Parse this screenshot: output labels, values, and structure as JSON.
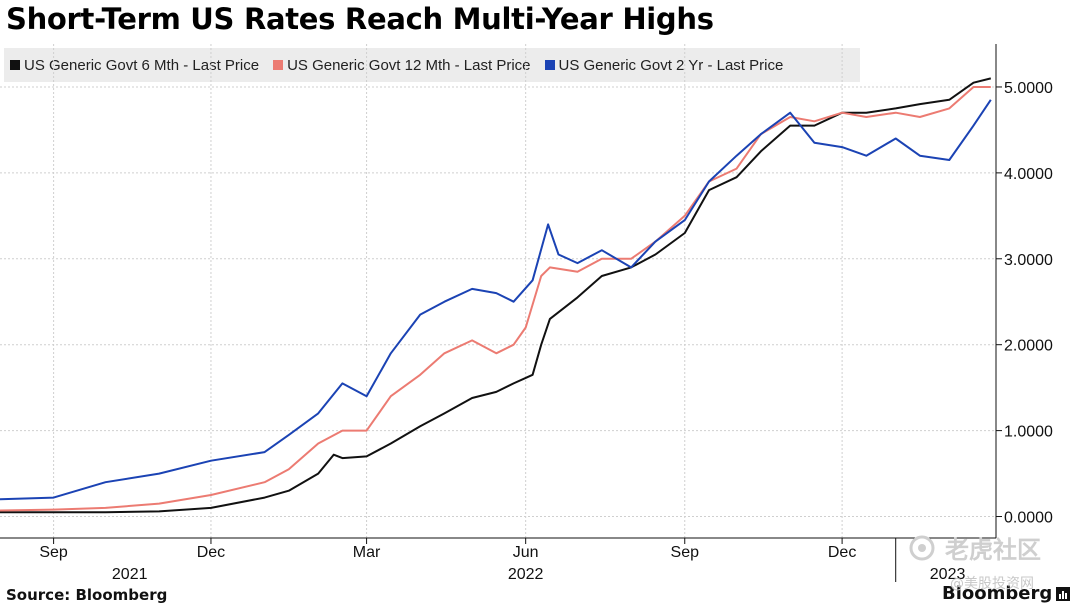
{
  "title": "Short-Term US Rates Reach Multi-Year Highs",
  "source": "Source: Bloomberg",
  "brand": "Bloomberg",
  "watermark": {
    "text": "老虎社区",
    "subtext": "@美股投资网"
  },
  "colors": {
    "black": "#111111",
    "red": "#ec7b72",
    "blue": "#1b43b4",
    "grid": "#cfcfcf",
    "legend_bg": "#ececec"
  },
  "chart_data": {
    "type": "line",
    "title": "Short-Term US Rates Reach Multi-Year Highs",
    "xlabel": "",
    "ylabel": "",
    "x_range": [
      "2021-08-01",
      "2023-02-28"
    ],
    "ylim": [
      -0.25,
      5.5
    ],
    "y_ticks": [
      0,
      1,
      2,
      3,
      4,
      5
    ],
    "y_tick_labels": [
      "0.0000",
      "1.0000",
      "2.0000",
      "3.0000",
      "4.0000",
      "5.0000"
    ],
    "x_tick_labels": [
      {
        "label": "Sep",
        "date": "2021-09-01"
      },
      {
        "label": "Dec",
        "date": "2021-12-01"
      },
      {
        "label": "Mar",
        "date": "2022-03-01"
      },
      {
        "label": "Jun",
        "date": "2022-06-01"
      },
      {
        "label": "Sep",
        "date": "2022-09-01"
      },
      {
        "label": "Dec",
        "date": "2022-12-01"
      }
    ],
    "year_labels": [
      {
        "label": "2021",
        "date": "2021-10-15"
      },
      {
        "label": "2022",
        "date": "2022-06-01"
      },
      {
        "label": "2023",
        "date": "2023-01-31"
      }
    ],
    "year_divider": "2023-01-01",
    "grid": true,
    "legend_position": "top-left",
    "series": [
      {
        "name": "US Generic Govt 6 Mth - Last Price",
        "color": "#111111",
        "points": [
          [
            "2021-08-01",
            0.05
          ],
          [
            "2021-09-01",
            0.05
          ],
          [
            "2021-10-01",
            0.05
          ],
          [
            "2021-11-01",
            0.06
          ],
          [
            "2021-12-01",
            0.1
          ],
          [
            "2022-01-01",
            0.22
          ],
          [
            "2022-01-15",
            0.3
          ],
          [
            "2022-02-01",
            0.5
          ],
          [
            "2022-02-10",
            0.72
          ],
          [
            "2022-02-15",
            0.68
          ],
          [
            "2022-03-01",
            0.7
          ],
          [
            "2022-03-15",
            0.85
          ],
          [
            "2022-04-01",
            1.05
          ],
          [
            "2022-04-15",
            1.2
          ],
          [
            "2022-05-01",
            1.38
          ],
          [
            "2022-05-15",
            1.45
          ],
          [
            "2022-05-25",
            1.55
          ],
          [
            "2022-06-05",
            1.65
          ],
          [
            "2022-06-10",
            2.0
          ],
          [
            "2022-06-15",
            2.3
          ],
          [
            "2022-07-01",
            2.55
          ],
          [
            "2022-07-15",
            2.8
          ],
          [
            "2022-08-01",
            2.9
          ],
          [
            "2022-08-15",
            3.05
          ],
          [
            "2022-09-01",
            3.3
          ],
          [
            "2022-09-15",
            3.8
          ],
          [
            "2022-10-01",
            3.95
          ],
          [
            "2022-10-15",
            4.25
          ],
          [
            "2022-11-01",
            4.55
          ],
          [
            "2022-11-15",
            4.55
          ],
          [
            "2022-12-01",
            4.7
          ],
          [
            "2022-12-15",
            4.7
          ],
          [
            "2023-01-01",
            4.75
          ],
          [
            "2023-01-15",
            4.8
          ],
          [
            "2023-02-01",
            4.85
          ],
          [
            "2023-02-15",
            5.05
          ],
          [
            "2023-02-25",
            5.1
          ]
        ]
      },
      {
        "name": "US Generic Govt 12 Mth - Last Price",
        "color": "#ec7b72",
        "points": [
          [
            "2021-08-01",
            0.07
          ],
          [
            "2021-09-01",
            0.08
          ],
          [
            "2021-10-01",
            0.1
          ],
          [
            "2021-11-01",
            0.15
          ],
          [
            "2021-12-01",
            0.25
          ],
          [
            "2022-01-01",
            0.4
          ],
          [
            "2022-01-15",
            0.55
          ],
          [
            "2022-02-01",
            0.85
          ],
          [
            "2022-02-15",
            1.0
          ],
          [
            "2022-03-01",
            1.0
          ],
          [
            "2022-03-15",
            1.4
          ],
          [
            "2022-04-01",
            1.65
          ],
          [
            "2022-04-15",
            1.9
          ],
          [
            "2022-05-01",
            2.05
          ],
          [
            "2022-05-15",
            1.9
          ],
          [
            "2022-05-25",
            2.0
          ],
          [
            "2022-06-01",
            2.2
          ],
          [
            "2022-06-10",
            2.8
          ],
          [
            "2022-06-15",
            2.9
          ],
          [
            "2022-07-01",
            2.85
          ],
          [
            "2022-07-15",
            3.0
          ],
          [
            "2022-08-01",
            3.0
          ],
          [
            "2022-08-15",
            3.2
          ],
          [
            "2022-09-01",
            3.5
          ],
          [
            "2022-09-15",
            3.9
          ],
          [
            "2022-10-01",
            4.05
          ],
          [
            "2022-10-15",
            4.45
          ],
          [
            "2022-11-01",
            4.65
          ],
          [
            "2022-11-15",
            4.6
          ],
          [
            "2022-12-01",
            4.7
          ],
          [
            "2022-12-15",
            4.65
          ],
          [
            "2023-01-01",
            4.7
          ],
          [
            "2023-01-15",
            4.65
          ],
          [
            "2023-02-01",
            4.75
          ],
          [
            "2023-02-15",
            5.0
          ],
          [
            "2023-02-25",
            5.0
          ]
        ]
      },
      {
        "name": "US Generic Govt 2 Yr - Last Price",
        "color": "#1b43b4",
        "points": [
          [
            "2021-08-01",
            0.2
          ],
          [
            "2021-09-01",
            0.22
          ],
          [
            "2021-10-01",
            0.4
          ],
          [
            "2021-11-01",
            0.5
          ],
          [
            "2021-12-01",
            0.65
          ],
          [
            "2022-01-01",
            0.75
          ],
          [
            "2022-01-15",
            0.95
          ],
          [
            "2022-02-01",
            1.2
          ],
          [
            "2022-02-15",
            1.55
          ],
          [
            "2022-03-01",
            1.4
          ],
          [
            "2022-03-15",
            1.9
          ],
          [
            "2022-04-01",
            2.35
          ],
          [
            "2022-04-15",
            2.5
          ],
          [
            "2022-05-01",
            2.65
          ],
          [
            "2022-05-15",
            2.6
          ],
          [
            "2022-05-25",
            2.5
          ],
          [
            "2022-06-05",
            2.75
          ],
          [
            "2022-06-14",
            3.4
          ],
          [
            "2022-06-20",
            3.05
          ],
          [
            "2022-07-01",
            2.95
          ],
          [
            "2022-07-15",
            3.1
          ],
          [
            "2022-08-01",
            2.9
          ],
          [
            "2022-08-15",
            3.2
          ],
          [
            "2022-09-01",
            3.45
          ],
          [
            "2022-09-15",
            3.9
          ],
          [
            "2022-10-01",
            4.2
          ],
          [
            "2022-10-15",
            4.45
          ],
          [
            "2022-11-01",
            4.7
          ],
          [
            "2022-11-15",
            4.35
          ],
          [
            "2022-12-01",
            4.3
          ],
          [
            "2022-12-15",
            4.2
          ],
          [
            "2023-01-01",
            4.4
          ],
          [
            "2023-01-15",
            4.2
          ],
          [
            "2023-02-01",
            4.15
          ],
          [
            "2023-02-15",
            4.55
          ],
          [
            "2023-02-25",
            4.85
          ]
        ]
      }
    ]
  }
}
